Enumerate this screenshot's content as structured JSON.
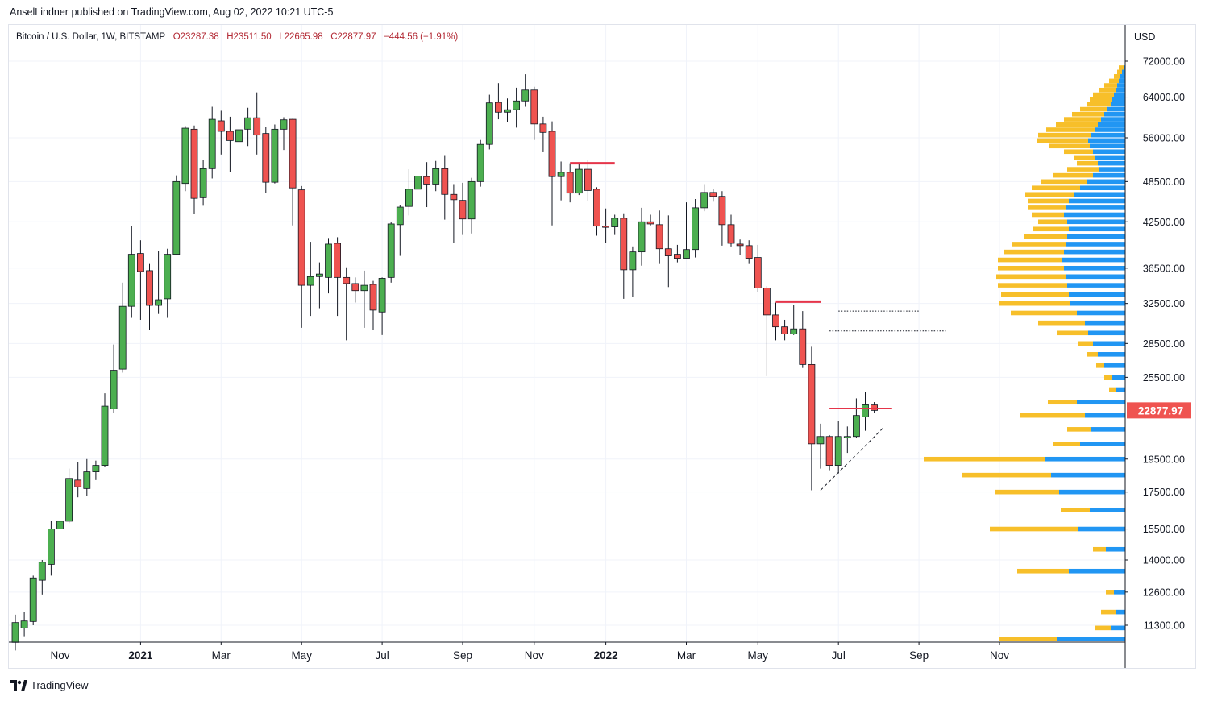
{
  "publisher_line": "AnselLindner published on TradingView.com, Aug 02, 2022 10:21 UTC-5",
  "legend": {
    "symbol": "Bitcoin / U.S. Dollar, 1W, BITSTAMP",
    "open": "O23287.38",
    "high": "H23511.50",
    "low": "L22665.98",
    "close": "C22877.97",
    "change": "−444.56 (−1.91%)"
  },
  "footer_brand": "TradingView",
  "colors": {
    "up": "#4caf50",
    "down": "#ef5350",
    "vp_up": "#2196f3",
    "vp_down": "#f7bf2a",
    "text": "#131722",
    "grid": "#f0f3fa",
    "price_tag": "#ef5350",
    "level": "#e5354a"
  },
  "chart_data": {
    "type": "candlestick",
    "title": "Bitcoin / U.S. Dollar, 1W, BITSTAMP",
    "y_scale": "log",
    "y_currency": "USD",
    "ylim": [
      10600,
      76000
    ],
    "y_ticks": [
      {
        "label": "72000.00",
        "value": 72000
      },
      {
        "label": "64000.00",
        "value": 64000
      },
      {
        "label": "56000.00",
        "value": 56000
      },
      {
        "label": "48500.00",
        "value": 48500
      },
      {
        "label": "42500.00",
        "value": 42500
      },
      {
        "label": "36500.00",
        "value": 36500
      },
      {
        "label": "32500.00",
        "value": 32500
      },
      {
        "label": "28500.00",
        "value": 28500
      },
      {
        "label": "25500.00",
        "value": 25500
      },
      {
        "label": "19500.00",
        "value": 19500
      },
      {
        "label": "17500.00",
        "value": 17500
      },
      {
        "label": "15500.00",
        "value": 15500
      },
      {
        "label": "14000.00",
        "value": 14000
      },
      {
        "label": "12600.00",
        "value": 12600
      },
      {
        "label": "11300.00",
        "value": 11300
      }
    ],
    "x_ticks": [
      {
        "label": "Nov",
        "week": 5,
        "bold": false
      },
      {
        "label": "2021",
        "week": 14,
        "bold": true
      },
      {
        "label": "Mar",
        "week": 23,
        "bold": false
      },
      {
        "label": "May",
        "week": 32,
        "bold": false
      },
      {
        "label": "Jul",
        "week": 41,
        "bold": false
      },
      {
        "label": "Sep",
        "week": 50,
        "bold": false
      },
      {
        "label": "Nov",
        "week": 58,
        "bold": false
      },
      {
        "label": "2022",
        "week": 66,
        "bold": true
      },
      {
        "label": "Mar",
        "week": 75,
        "bold": false
      },
      {
        "label": "May",
        "week": 83,
        "bold": false
      },
      {
        "label": "Jul",
        "week": 92,
        "bold": false
      },
      {
        "label": "Sep",
        "week": 101,
        "bold": false
      },
      {
        "label": "Nov",
        "week": 110,
        "bold": false
      }
    ],
    "last_price": {
      "label": "22877.97",
      "value": 22877.97
    },
    "candles": [
      [
        10680,
        11400,
        10400,
        11700
      ],
      [
        11200,
        11460,
        10900,
        11800
      ],
      [
        11440,
        13200,
        11300,
        13300
      ],
      [
        13100,
        13900,
        12500,
        14000
      ],
      [
        13800,
        15500,
        13300,
        15900
      ],
      [
        15500,
        15900,
        14900,
        16300
      ],
      [
        15900,
        18300,
        15800,
        18900
      ],
      [
        18200,
        17800,
        17200,
        19300
      ],
      [
        17700,
        18700,
        17300,
        19500
      ],
      [
        18700,
        19100,
        18200,
        19400
      ],
      [
        19100,
        23200,
        19000,
        24200
      ],
      [
        23000,
        26100,
        22700,
        28400
      ],
      [
        26200,
        32200,
        25900,
        34800
      ],
      [
        32200,
        38200,
        31000,
        41900
      ],
      [
        38300,
        36100,
        30800,
        40000
      ],
      [
        36200,
        32300,
        29800,
        37000
      ],
      [
        32300,
        32900,
        31400,
        38600
      ],
      [
        33000,
        38200,
        31000,
        38900
      ],
      [
        38200,
        48500,
        38100,
        49500
      ],
      [
        48200,
        57800,
        47000,
        58200
      ],
      [
        57600,
        45900,
        43600,
        58300
      ],
      [
        46000,
        50600,
        44800,
        52000
      ],
      [
        50600,
        59500,
        49000,
        62000
      ],
      [
        59200,
        57200,
        53000,
        61200
      ],
      [
        57200,
        55500,
        50000,
        60000
      ],
      [
        55300,
        57500,
        54000,
        61500
      ],
      [
        57600,
        59800,
        54500,
        61800
      ],
      [
        59800,
        56500,
        53000,
        65000
      ],
      [
        56800,
        48400,
        46700,
        58000
      ],
      [
        48400,
        57600,
        48200,
        58500
      ],
      [
        57600,
        59400,
        53800,
        59900
      ],
      [
        59500,
        47500,
        42000,
        59600
      ],
      [
        47200,
        34500,
        30000,
        47800
      ],
      [
        34500,
        35500,
        31200,
        39800
      ],
      [
        35500,
        35800,
        32000,
        37200
      ],
      [
        35400,
        39500,
        33600,
        40300
      ],
      [
        39600,
        35400,
        31200,
        40400
      ],
      [
        35400,
        34700,
        28800,
        36600
      ],
      [
        34700,
        33900,
        32600,
        35400
      ],
      [
        33900,
        34500,
        30000,
        36200
      ],
      [
        34600,
        31800,
        29800,
        35000
      ],
      [
        31600,
        35300,
        29300,
        35400
      ],
      [
        35400,
        42200,
        34800,
        42500
      ],
      [
        42100,
        44600,
        38000,
        44900
      ],
      [
        44700,
        47300,
        43400,
        50500
      ],
      [
        47300,
        49400,
        46200,
        50600
      ],
      [
        49300,
        48100,
        44600,
        51700
      ],
      [
        48100,
        50600,
        47000,
        51900
      ],
      [
        50600,
        46500,
        42800,
        52900
      ],
      [
        46500,
        45700,
        39600,
        48100
      ],
      [
        45600,
        42900,
        40700,
        48300
      ],
      [
        42900,
        48500,
        40900,
        49100
      ],
      [
        48500,
        54800,
        47700,
        55600
      ],
      [
        54800,
        62800,
        53900,
        64500
      ],
      [
        62900,
        60900,
        59500,
        67000
      ],
      [
        60900,
        61400,
        59000,
        63700
      ],
      [
        61400,
        63200,
        57900,
        66000
      ],
      [
        63200,
        65500,
        62000,
        69000
      ],
      [
        65500,
        58600,
        55600,
        66200
      ],
      [
        58600,
        57000,
        53400,
        60000
      ],
      [
        57200,
        49300,
        42000,
        59100
      ],
      [
        49300,
        50000,
        45600,
        51800
      ],
      [
        50000,
        46700,
        45300,
        51500
      ],
      [
        46700,
        50500,
        46400,
        51400
      ],
      [
        50500,
        47100,
        45500,
        52000
      ],
      [
        47300,
        41900,
        40600,
        47600
      ],
      [
        41900,
        41800,
        39600,
        44400
      ],
      [
        41800,
        43000,
        40700,
        43500
      ],
      [
        43000,
        36300,
        33000,
        43700
      ],
      [
        36300,
        38500,
        33200,
        39200
      ],
      [
        38500,
        42500,
        36800,
        44500
      ],
      [
        42500,
        42200,
        42000,
        43500
      ],
      [
        42100,
        38900,
        37000,
        44100
      ],
      [
        38900,
        38000,
        34300,
        43400
      ],
      [
        38200,
        37700,
        37200,
        39400
      ],
      [
        37700,
        38800,
        37700,
        45300
      ],
      [
        38800,
        44500,
        37800,
        45800
      ],
      [
        44500,
        46800,
        44000,
        48100
      ],
      [
        46800,
        46200,
        45400,
        47400
      ],
      [
        46200,
        42100,
        39300,
        47000
      ],
      [
        42100,
        39600,
        39200,
        43500
      ],
      [
        39500,
        39300,
        38100,
        40100
      ],
      [
        39300,
        37700,
        37000,
        40000
      ],
      [
        37800,
        34200,
        33700,
        39400
      ],
      [
        34200,
        31300,
        25600,
        34400
      ],
      [
        31300,
        30100,
        28800,
        32600
      ],
      [
        30100,
        29400,
        28800,
        30800
      ],
      [
        29400,
        29900,
        29300,
        32300
      ],
      [
        29900,
        26600,
        26300,
        31700
      ],
      [
        26600,
        20500,
        17600,
        28200
      ],
      [
        20500,
        21000,
        18900,
        21900
      ],
      [
        21000,
        19100,
        18800,
        21100
      ],
      [
        19100,
        21000,
        18600,
        22100
      ],
      [
        20900,
        21000,
        19900,
        21700
      ],
      [
        21000,
        22500,
        20900,
        23800
      ],
      [
        22400,
        23300,
        21400,
        24300
      ],
      [
        23290,
        22878,
        22666,
        23512
      ]
    ],
    "volume_profile": [
      [
        70500,
        2,
        6
      ],
      [
        69500,
        4,
        6
      ],
      [
        68500,
        6,
        8
      ],
      [
        67500,
        8,
        12
      ],
      [
        66500,
        10,
        16
      ],
      [
        65500,
        12,
        20
      ],
      [
        64500,
        14,
        26
      ],
      [
        63500,
        16,
        28
      ],
      [
        62500,
        18,
        30
      ],
      [
        61500,
        22,
        34
      ],
      [
        60500,
        26,
        40
      ],
      [
        59500,
        30,
        46
      ],
      [
        58500,
        34,
        52
      ],
      [
        57500,
        38,
        60
      ],
      [
        56500,
        42,
        66
      ],
      [
        55500,
        46,
        64
      ],
      [
        54500,
        44,
        50
      ],
      [
        53500,
        40,
        36
      ],
      [
        52500,
        38,
        26
      ],
      [
        51500,
        34,
        26
      ],
      [
        50500,
        32,
        40
      ],
      [
        49500,
        40,
        50
      ],
      [
        48500,
        48,
        56
      ],
      [
        47500,
        56,
        60
      ],
      [
        46500,
        64,
        60
      ],
      [
        45500,
        70,
        50
      ],
      [
        44500,
        74,
        46
      ],
      [
        43500,
        76,
        40
      ],
      [
        42500,
        72,
        36
      ],
      [
        41500,
        70,
        44
      ],
      [
        40500,
        72,
        54
      ],
      [
        39500,
        74,
        66
      ],
      [
        38500,
        76,
        74
      ],
      [
        37500,
        78,
        80
      ],
      [
        36500,
        76,
        82
      ],
      [
        35500,
        74,
        86
      ],
      [
        34500,
        72,
        86
      ],
      [
        33500,
        70,
        84
      ],
      [
        32500,
        68,
        88
      ],
      [
        31500,
        60,
        82
      ],
      [
        30500,
        50,
        58
      ],
      [
        29500,
        46,
        38
      ],
      [
        28500,
        40,
        18
      ],
      [
        27500,
        34,
        14
      ],
      [
        26500,
        26,
        10
      ],
      [
        25500,
        16,
        10
      ],
      [
        24500,
        12,
        8
      ],
      [
        23500,
        60,
        36
      ],
      [
        22500,
        50,
        80
      ],
      [
        21500,
        42,
        30
      ],
      [
        20500,
        56,
        34
      ],
      [
        19500,
        100,
        150
      ],
      [
        18500,
        92,
        110
      ],
      [
        17500,
        82,
        80
      ],
      [
        16500,
        44,
        36
      ],
      [
        15500,
        58,
        110
      ],
      [
        14500,
        24,
        16
      ],
      [
        13500,
        70,
        64
      ],
      [
        12600,
        14,
        10
      ],
      [
        11800,
        12,
        18
      ],
      [
        11200,
        18,
        20
      ],
      [
        10800,
        84,
        72
      ]
    ],
    "annotations": {
      "resistance_lines": [
        {
          "value": 51500,
          "from_week": 62,
          "to_week": 67
        },
        {
          "value": 32700,
          "from_week": 85,
          "to_week": 90
        }
      ],
      "dotted_lines": [
        {
          "value": 31700,
          "from_week": 92,
          "to_week": 101
        },
        {
          "value": 29700,
          "from_week": 91,
          "to_week": 104
        }
      ],
      "thin_line": {
        "value": 23050,
        "from_week": 91,
        "to_week": 98
      },
      "dashed_trendline": {
        "from": [
          90,
          17600
        ],
        "to": [
          97,
          21600
        ]
      }
    }
  }
}
